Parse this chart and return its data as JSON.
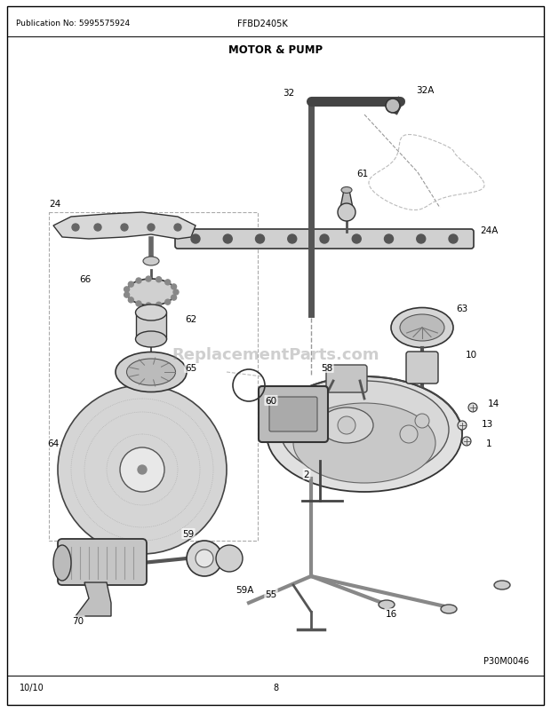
{
  "pub_no": "Publication No: 5995575924",
  "model": "FFBD2405K",
  "title": "MOTOR & PUMP",
  "page": "8",
  "date": "10/10",
  "watermark": "ReplacementParts.com",
  "part_ref": "P30M0046",
  "bg_color": "#ffffff",
  "border_color": "#000000",
  "fig_w": 6.2,
  "fig_h": 8.03,
  "dpi": 100
}
